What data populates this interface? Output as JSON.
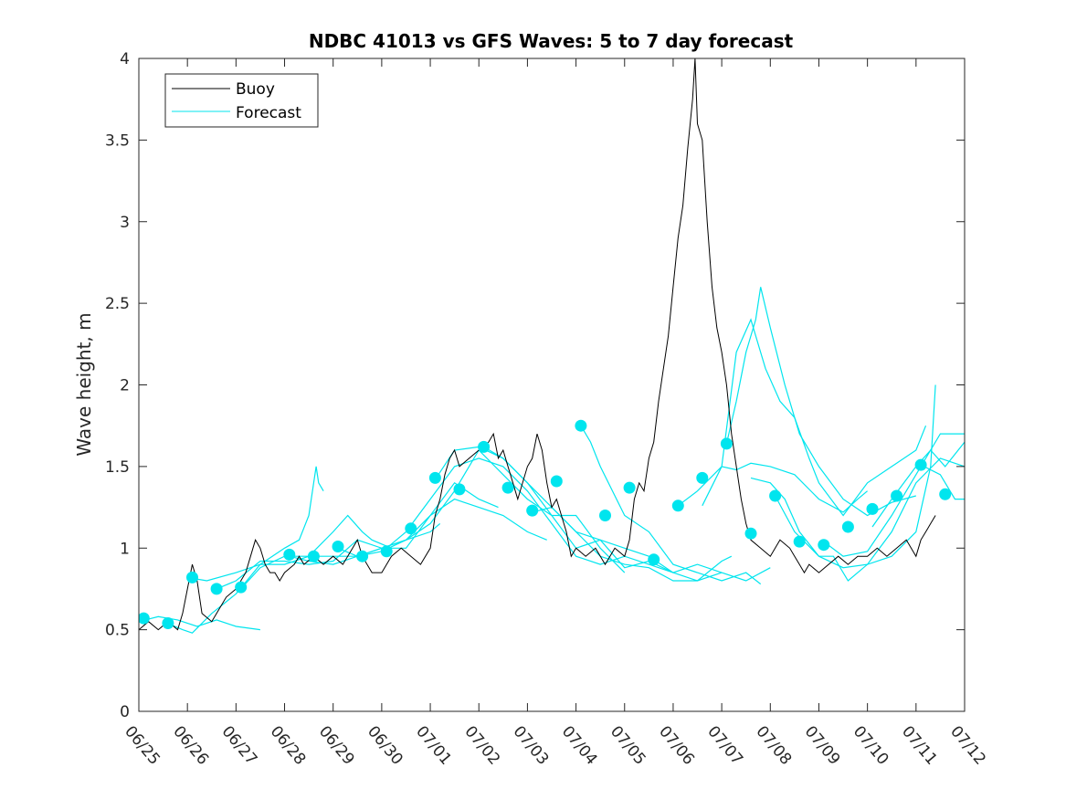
{
  "chart_data": {
    "type": "line",
    "title": "NDBC 41013 vs GFS Waves: 5 to 7 day forecast",
    "xlabel": "",
    "ylabel": "Wave height, m",
    "x_unit": "days from 06/25 00:00",
    "xlim": [
      0,
      17
    ],
    "ylim": [
      0,
      4
    ],
    "xticks": [
      0,
      1,
      2,
      3,
      4,
      5,
      6,
      7,
      8,
      9,
      10,
      11,
      12,
      13,
      14,
      15,
      16,
      17
    ],
    "xtick_labels": [
      "06/25",
      "06/26",
      "06/27",
      "06/28",
      "06/29",
      "06/30",
      "07/01",
      "07/02",
      "07/03",
      "07/04",
      "07/05",
      "07/06",
      "07/07",
      "07/08",
      "07/09",
      "07/10",
      "07/11",
      "07/12"
    ],
    "yticks": [
      0,
      0.5,
      1,
      1.5,
      2,
      2.5,
      3,
      3.5,
      4
    ],
    "ytick_labels": [
      "0",
      "0.5",
      "1",
      "1.5",
      "2",
      "2.5",
      "3",
      "3.5",
      "4"
    ],
    "grid": false,
    "legend": {
      "position": "top-left",
      "entries": [
        {
          "label": "Buoy",
          "color": "#000000"
        },
        {
          "label": "Forecast",
          "color": "#00e5ee"
        }
      ]
    },
    "colors": {
      "buoy": "#000000",
      "forecast": "#00e5ee"
    },
    "buoy": [
      [
        0.0,
        0.5
      ],
      [
        0.2,
        0.55
      ],
      [
        0.4,
        0.5
      ],
      [
        0.6,
        0.55
      ],
      [
        0.8,
        0.5
      ],
      [
        0.9,
        0.6
      ],
      [
        1.0,
        0.75
      ],
      [
        1.1,
        0.9
      ],
      [
        1.2,
        0.8
      ],
      [
        1.3,
        0.6
      ],
      [
        1.5,
        0.55
      ],
      [
        1.6,
        0.6
      ],
      [
        1.8,
        0.7
      ],
      [
        2.0,
        0.75
      ],
      [
        2.2,
        0.85
      ],
      [
        2.3,
        0.95
      ],
      [
        2.4,
        1.05
      ],
      [
        2.5,
        1.0
      ],
      [
        2.6,
        0.9
      ],
      [
        2.7,
        0.85
      ],
      [
        2.8,
        0.85
      ],
      [
        2.9,
        0.8
      ],
      [
        3.0,
        0.85
      ],
      [
        3.2,
        0.9
      ],
      [
        3.3,
        0.95
      ],
      [
        3.4,
        0.9
      ],
      [
        3.6,
        0.95
      ],
      [
        3.8,
        0.9
      ],
      [
        4.0,
        0.95
      ],
      [
        4.2,
        0.9
      ],
      [
        4.4,
        1.0
      ],
      [
        4.5,
        1.05
      ],
      [
        4.6,
        0.95
      ],
      [
        4.8,
        0.85
      ],
      [
        5.0,
        0.85
      ],
      [
        5.2,
        0.95
      ],
      [
        5.4,
        1.0
      ],
      [
        5.6,
        0.95
      ],
      [
        5.8,
        0.9
      ],
      [
        6.0,
        1.0
      ],
      [
        6.1,
        1.2
      ],
      [
        6.2,
        1.3
      ],
      [
        6.3,
        1.45
      ],
      [
        6.4,
        1.55
      ],
      [
        6.5,
        1.6
      ],
      [
        6.6,
        1.5
      ],
      [
        6.8,
        1.55
      ],
      [
        7.0,
        1.6
      ],
      [
        7.2,
        1.65
      ],
      [
        7.3,
        1.7
      ],
      [
        7.4,
        1.55
      ],
      [
        7.5,
        1.6
      ],
      [
        7.6,
        1.5
      ],
      [
        7.7,
        1.4
      ],
      [
        7.8,
        1.3
      ],
      [
        8.0,
        1.5
      ],
      [
        8.1,
        1.55
      ],
      [
        8.2,
        1.7
      ],
      [
        8.3,
        1.6
      ],
      [
        8.4,
        1.4
      ],
      [
        8.5,
        1.25
      ],
      [
        8.6,
        1.3
      ],
      [
        8.7,
        1.2
      ],
      [
        8.8,
        1.1
      ],
      [
        8.9,
        0.95
      ],
      [
        9.0,
        1.0
      ],
      [
        9.2,
        0.95
      ],
      [
        9.4,
        1.0
      ],
      [
        9.6,
        0.9
      ],
      [
        9.8,
        1.0
      ],
      [
        10.0,
        0.95
      ],
      [
        10.1,
        1.05
      ],
      [
        10.2,
        1.3
      ],
      [
        10.3,
        1.4
      ],
      [
        10.4,
        1.35
      ],
      [
        10.5,
        1.55
      ],
      [
        10.6,
        1.65
      ],
      [
        10.7,
        1.9
      ],
      [
        10.8,
        2.1
      ],
      [
        10.9,
        2.3
      ],
      [
        11.0,
        2.6
      ],
      [
        11.1,
        2.9
      ],
      [
        11.2,
        3.1
      ],
      [
        11.3,
        3.45
      ],
      [
        11.4,
        3.75
      ],
      [
        11.45,
        4.0
      ],
      [
        11.5,
        3.6
      ],
      [
        11.6,
        3.5
      ],
      [
        11.7,
        3.0
      ],
      [
        11.8,
        2.6
      ],
      [
        11.9,
        2.35
      ],
      [
        12.0,
        2.2
      ],
      [
        12.1,
        2.0
      ],
      [
        12.2,
        1.7
      ],
      [
        12.3,
        1.5
      ],
      [
        12.4,
        1.3
      ],
      [
        12.5,
        1.15
      ],
      [
        12.6,
        1.05
      ],
      [
        12.8,
        1.0
      ],
      [
        13.0,
        0.95
      ],
      [
        13.2,
        1.05
      ],
      [
        13.4,
        1.0
      ],
      [
        13.5,
        0.95
      ],
      [
        13.6,
        0.9
      ],
      [
        13.7,
        0.85
      ],
      [
        13.8,
        0.9
      ],
      [
        14.0,
        0.85
      ],
      [
        14.2,
        0.9
      ],
      [
        14.4,
        0.95
      ],
      [
        14.6,
        0.9
      ],
      [
        14.8,
        0.95
      ],
      [
        15.0,
        0.95
      ],
      [
        15.2,
        1.0
      ],
      [
        15.4,
        0.95
      ],
      [
        15.6,
        1.0
      ],
      [
        15.8,
        1.05
      ],
      [
        16.0,
        0.95
      ],
      [
        16.1,
        1.05
      ],
      [
        16.2,
        1.1
      ],
      [
        16.3,
        1.15
      ],
      [
        16.4,
        1.2
      ]
    ],
    "forecast_series": [
      [
        [
          0.0,
          0.55
        ],
        [
          0.4,
          0.58
        ],
        [
          0.8,
          0.56
        ],
        [
          1.2,
          0.52
        ],
        [
          1.6,
          0.56
        ],
        [
          2.0,
          0.52
        ],
        [
          2.5,
          0.5
        ]
      ],
      [
        [
          0.5,
          0.55
        ],
        [
          0.9,
          0.5
        ],
        [
          1.1,
          0.48
        ],
        [
          1.5,
          0.6
        ],
        [
          2.0,
          0.72
        ],
        [
          2.5,
          0.9
        ],
        [
          3.0,
          1.0
        ],
        [
          3.3,
          1.05
        ],
        [
          3.5,
          1.2
        ],
        [
          3.6,
          1.4
        ],
        [
          3.65,
          1.5
        ],
        [
          3.7,
          1.4
        ],
        [
          3.8,
          1.35
        ]
      ],
      [
        [
          1.0,
          0.82
        ],
        [
          1.4,
          0.8
        ],
        [
          2.0,
          0.85
        ],
        [
          2.5,
          0.9
        ],
        [
          3.0,
          0.9
        ],
        [
          3.5,
          0.95
        ],
        [
          4.0,
          1.1
        ],
        [
          4.3,
          1.2
        ],
        [
          4.6,
          1.1
        ],
        [
          4.8,
          1.05
        ],
        [
          5.2,
          1.0
        ]
      ],
      [
        [
          1.6,
          0.75
        ],
        [
          2.0,
          0.8
        ],
        [
          2.5,
          0.92
        ],
        [
          3.0,
          0.92
        ],
        [
          3.5,
          0.9
        ],
        [
          4.0,
          0.92
        ],
        [
          4.5,
          1.05
        ],
        [
          5.0,
          1.0
        ],
        [
          5.5,
          1.05
        ],
        [
          6.0,
          1.1
        ],
        [
          6.2,
          1.15
        ]
      ],
      [
        [
          2.1,
          0.75
        ],
        [
          2.5,
          0.88
        ],
        [
          3.0,
          0.95
        ],
        [
          3.5,
          0.95
        ],
        [
          4.0,
          0.95
        ],
        [
          4.5,
          0.95
        ],
        [
          5.0,
          1.0
        ],
        [
          5.5,
          1.0
        ],
        [
          6.0,
          1.2
        ],
        [
          6.5,
          1.4
        ],
        [
          7.0,
          1.3
        ],
        [
          7.4,
          1.25
        ]
      ],
      [
        [
          3.1,
          0.95
        ],
        [
          3.5,
          0.92
        ],
        [
          4.0,
          0.9
        ],
        [
          4.5,
          0.95
        ],
        [
          5.0,
          1.0
        ],
        [
          5.5,
          1.05
        ],
        [
          6.0,
          1.2
        ],
        [
          6.5,
          1.3
        ],
        [
          7.0,
          1.25
        ],
        [
          7.5,
          1.2
        ],
        [
          8.0,
          1.1
        ],
        [
          8.4,
          1.05
        ]
      ],
      [
        [
          4.1,
          1.0
        ],
        [
          4.5,
          0.95
        ],
        [
          5.0,
          0.98
        ],
        [
          5.5,
          1.05
        ],
        [
          6.0,
          1.15
        ],
        [
          6.5,
          1.35
        ],
        [
          7.0,
          1.6
        ],
        [
          7.5,
          1.45
        ],
        [
          8.0,
          1.3
        ],
        [
          8.5,
          1.2
        ],
        [
          9.0,
          1.2
        ],
        [
          9.5,
          1.0
        ],
        [
          10.0,
          0.85
        ]
      ],
      [
        [
          5.1,
          1.0
        ],
        [
          5.5,
          1.1
        ],
        [
          6.0,
          1.3
        ],
        [
          6.5,
          1.5
        ],
        [
          7.0,
          1.55
        ],
        [
          7.5,
          1.5
        ],
        [
          8.0,
          1.35
        ],
        [
          8.5,
          1.15
        ],
        [
          9.0,
          0.95
        ],
        [
          9.5,
          0.9
        ],
        [
          10.0,
          0.95
        ],
        [
          10.5,
          0.9
        ],
        [
          11.0,
          0.85
        ]
      ],
      [
        [
          6.1,
          1.42
        ],
        [
          6.5,
          1.6
        ],
        [
          7.0,
          1.62
        ],
        [
          7.5,
          1.55
        ],
        [
          8.0,
          1.4
        ],
        [
          8.5,
          1.25
        ],
        [
          9.0,
          1.1
        ],
        [
          9.5,
          0.95
        ],
        [
          10.0,
          0.9
        ],
        [
          10.5,
          0.88
        ],
        [
          11.0,
          0.8
        ],
        [
          11.5,
          0.8
        ],
        [
          12.0,
          0.85
        ]
      ],
      [
        [
          7.1,
          1.62
        ],
        [
          7.5,
          1.55
        ],
        [
          8.0,
          1.4
        ],
        [
          8.5,
          1.2
        ],
        [
          9.0,
          1.0
        ],
        [
          9.5,
          1.05
        ],
        [
          10.0,
          0.88
        ],
        [
          10.5,
          0.92
        ],
        [
          11.0,
          0.85
        ],
        [
          11.5,
          0.8
        ],
        [
          12.0,
          0.92
        ],
        [
          12.2,
          0.95
        ]
      ],
      [
        [
          8.1,
          1.22
        ],
        [
          8.5,
          1.25
        ],
        [
          9.0,
          1.1
        ],
        [
          9.5,
          1.05
        ],
        [
          10.0,
          1.0
        ],
        [
          10.5,
          0.95
        ],
        [
          11.0,
          0.85
        ],
        [
          11.5,
          0.9
        ],
        [
          12.0,
          0.85
        ],
        [
          12.5,
          0.8
        ],
        [
          13.0,
          0.88
        ]
      ],
      [
        [
          9.1,
          1.75
        ],
        [
          9.3,
          1.65
        ],
        [
          9.5,
          1.5
        ],
        [
          10.0,
          1.2
        ],
        [
          10.5,
          1.1
        ],
        [
          11.0,
          0.9
        ],
        [
          11.5,
          0.85
        ],
        [
          12.0,
          0.8
        ],
        [
          12.5,
          0.85
        ],
        [
          12.8,
          0.78
        ]
      ],
      [
        [
          11.1,
          1.26
        ],
        [
          11.5,
          1.35
        ],
        [
          12.0,
          1.5
        ],
        [
          12.3,
          1.48
        ],
        [
          12.6,
          1.52
        ],
        [
          13.0,
          1.5
        ],
        [
          13.5,
          1.45
        ],
        [
          14.0,
          1.3
        ],
        [
          14.5,
          1.22
        ],
        [
          14.8,
          1.3
        ],
        [
          15.0,
          1.35
        ]
      ],
      [
        [
          12.1,
          1.64
        ],
        [
          12.3,
          1.9
        ],
        [
          12.5,
          2.2
        ],
        [
          12.7,
          2.4
        ],
        [
          12.8,
          2.6
        ],
        [
          13.0,
          2.35
        ],
        [
          13.3,
          2.0
        ],
        [
          13.6,
          1.7
        ],
        [
          14.0,
          1.5
        ],
        [
          14.5,
          1.3
        ],
        [
          15.0,
          1.2
        ],
        [
          15.5,
          1.28
        ],
        [
          16.0,
          1.32
        ]
      ],
      [
        [
          11.6,
          1.26
        ],
        [
          12.0,
          1.5
        ],
        [
          12.3,
          2.2
        ],
        [
          12.6,
          2.4
        ],
        [
          12.9,
          2.1
        ],
        [
          13.2,
          1.9
        ],
        [
          13.5,
          1.8
        ],
        [
          13.8,
          1.55
        ],
        [
          14.0,
          1.4
        ],
        [
          14.5,
          1.2
        ],
        [
          15.0,
          1.4
        ],
        [
          15.5,
          1.5
        ],
        [
          16.0,
          1.6
        ],
        [
          16.2,
          1.75
        ]
      ],
      [
        [
          12.6,
          1.43
        ],
        [
          13.0,
          1.4
        ],
        [
          13.3,
          1.3
        ],
        [
          13.6,
          1.1
        ],
        [
          14.0,
          0.95
        ],
        [
          14.3,
          0.95
        ],
        [
          14.6,
          0.8
        ],
        [
          15.0,
          0.9
        ],
        [
          15.5,
          0.95
        ],
        [
          16.0,
          1.1
        ],
        [
          16.3,
          1.5
        ],
        [
          16.4,
          2.0
        ]
      ],
      [
        [
          13.1,
          1.32
        ],
        [
          13.5,
          1.1
        ],
        [
          14.0,
          0.95
        ],
        [
          14.5,
          0.88
        ],
        [
          15.0,
          0.9
        ],
        [
          15.5,
          1.1
        ],
        [
          16.0,
          1.4
        ],
        [
          16.5,
          1.55
        ],
        [
          17.0,
          1.5
        ]
      ],
      [
        [
          14.1,
          1.04
        ],
        [
          14.5,
          0.95
        ],
        [
          15.0,
          0.98
        ],
        [
          15.5,
          1.2
        ],
        [
          16.0,
          1.45
        ],
        [
          16.5,
          1.7
        ],
        [
          17.0,
          1.7
        ]
      ],
      [
        [
          15.1,
          1.13
        ],
        [
          15.5,
          1.3
        ],
        [
          16.0,
          1.5
        ],
        [
          16.3,
          1.6
        ],
        [
          16.6,
          1.5
        ],
        [
          17.0,
          1.65
        ]
      ],
      [
        [
          16.1,
          1.51
        ],
        [
          16.5,
          1.45
        ],
        [
          16.8,
          1.3
        ],
        [
          17.0,
          1.3
        ]
      ]
    ],
    "forecast_markers": [
      [
        0.1,
        0.57
      ],
      [
        0.6,
        0.54
      ],
      [
        1.1,
        0.82
      ],
      [
        1.6,
        0.75
      ],
      [
        2.1,
        0.76
      ],
      [
        3.1,
        0.96
      ],
      [
        3.6,
        0.95
      ],
      [
        4.1,
        1.01
      ],
      [
        4.6,
        0.95
      ],
      [
        5.1,
        0.98
      ],
      [
        5.6,
        1.12
      ],
      [
        6.1,
        1.43
      ],
      [
        6.6,
        1.36
      ],
      [
        7.1,
        1.62
      ],
      [
        7.6,
        1.37
      ],
      [
        8.1,
        1.23
      ],
      [
        8.6,
        1.41
      ],
      [
        9.1,
        1.75
      ],
      [
        9.6,
        1.2
      ],
      [
        10.1,
        1.37
      ],
      [
        10.6,
        0.93
      ],
      [
        11.1,
        1.26
      ],
      [
        11.6,
        1.43
      ],
      [
        12.1,
        1.64
      ],
      [
        12.6,
        1.09
      ],
      [
        13.1,
        1.32
      ],
      [
        13.6,
        1.04
      ],
      [
        14.1,
        1.02
      ],
      [
        14.6,
        1.13
      ],
      [
        15.1,
        1.24
      ],
      [
        15.6,
        1.32
      ],
      [
        16.1,
        1.51
      ],
      [
        16.6,
        1.33
      ]
    ]
  }
}
